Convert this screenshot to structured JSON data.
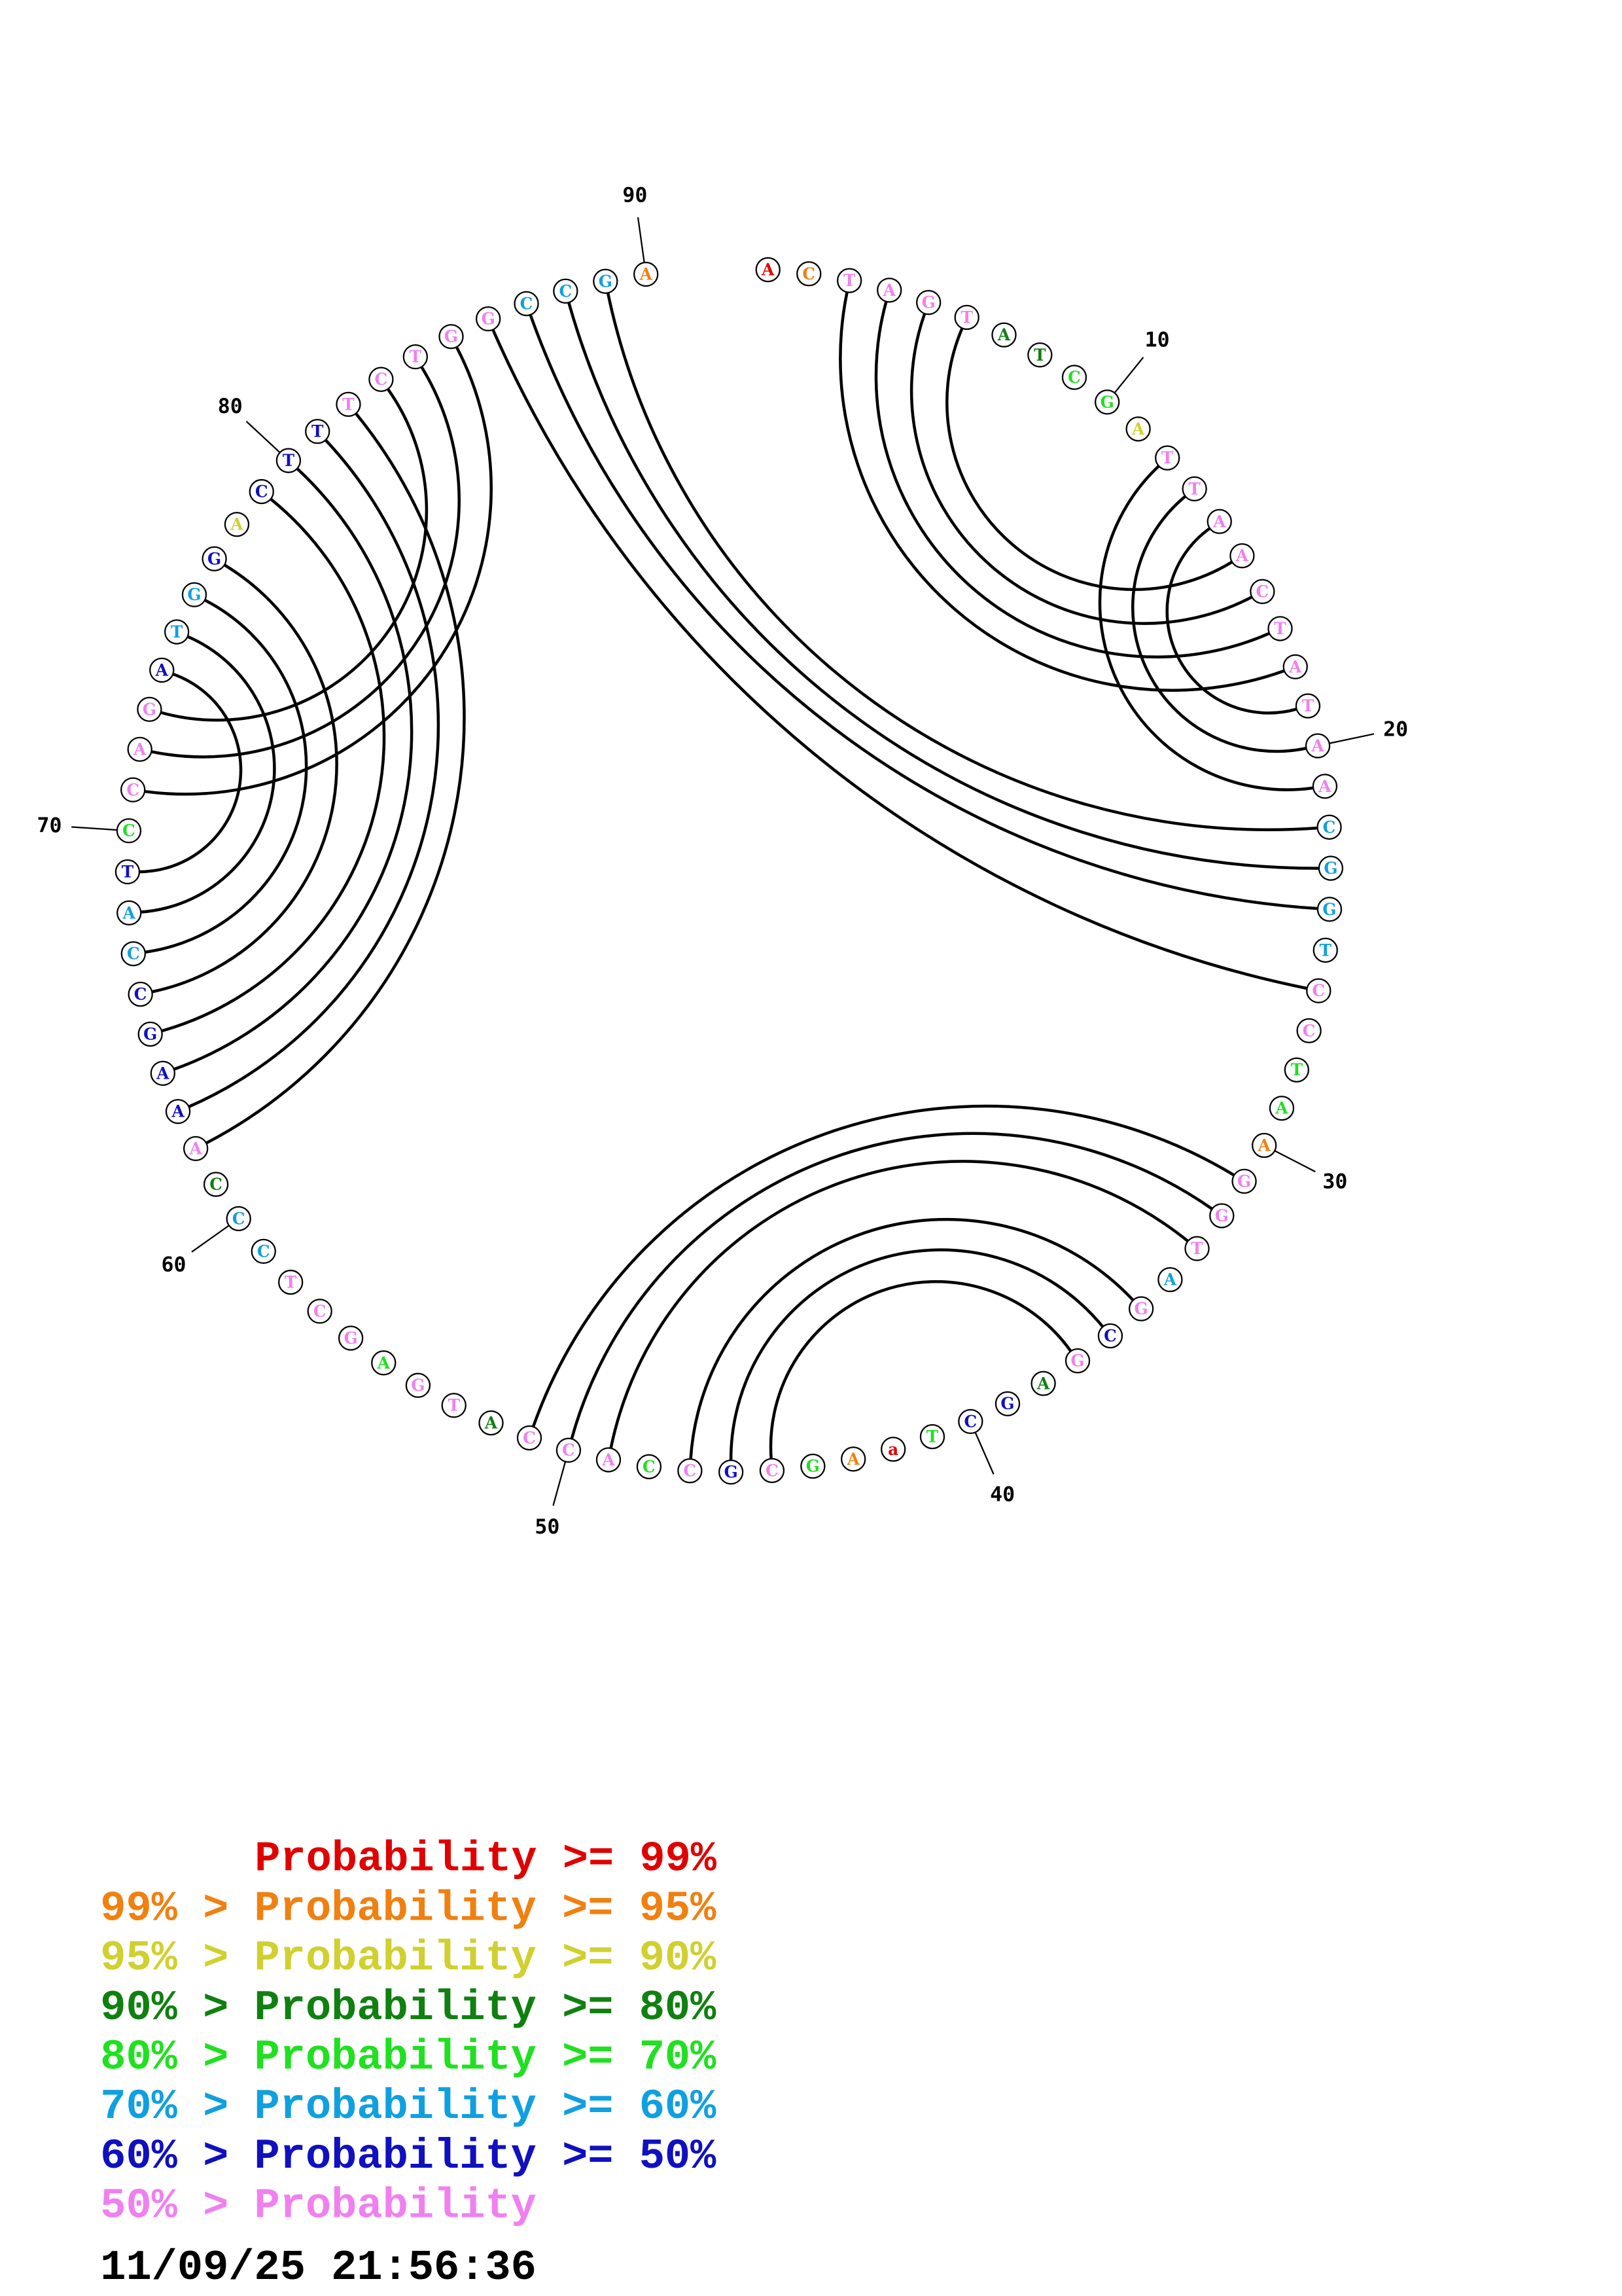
{
  "plot": {
    "nucleotides": [
      {
        "base": "A",
        "class": 0
      },
      {
        "base": "C",
        "class": 1
      },
      {
        "base": "T",
        "class": 7
      },
      {
        "base": "A",
        "class": 7
      },
      {
        "base": "G",
        "class": 7
      },
      {
        "base": "T",
        "class": 7
      },
      {
        "base": "A",
        "class": 3
      },
      {
        "base": "T",
        "class": 3
      },
      {
        "base": "C",
        "class": 4
      },
      {
        "base": "G",
        "class": 4
      },
      {
        "base": "A",
        "class": 2
      },
      {
        "base": "T",
        "class": 7
      },
      {
        "base": "T",
        "class": 7
      },
      {
        "base": "A",
        "class": 7
      },
      {
        "base": "A",
        "class": 7
      },
      {
        "base": "C",
        "class": 7
      },
      {
        "base": "T",
        "class": 7
      },
      {
        "base": "A",
        "class": 7
      },
      {
        "base": "T",
        "class": 7
      },
      {
        "base": "A",
        "class": 7
      },
      {
        "base": "A",
        "class": 7
      },
      {
        "base": "C",
        "class": 5
      },
      {
        "base": "G",
        "class": 5
      },
      {
        "base": "G",
        "class": 5
      },
      {
        "base": "T",
        "class": 5
      },
      {
        "base": "C",
        "class": 7
      },
      {
        "base": "C",
        "class": 7
      },
      {
        "base": "T",
        "class": 4
      },
      {
        "base": "A",
        "class": 4
      },
      {
        "base": "A",
        "class": 1
      },
      {
        "base": "G",
        "class": 7
      },
      {
        "base": "G",
        "class": 7
      },
      {
        "base": "T",
        "class": 7
      },
      {
        "base": "A",
        "class": 5
      },
      {
        "base": "G",
        "class": 7
      },
      {
        "base": "C",
        "class": 6
      },
      {
        "base": "G",
        "class": 7
      },
      {
        "base": "A",
        "class": 3
      },
      {
        "base": "G",
        "class": 6
      },
      {
        "base": "C",
        "class": 6
      },
      {
        "base": "T",
        "class": 4
      },
      {
        "base": "a",
        "class": 0
      },
      {
        "base": "A",
        "class": 1
      },
      {
        "base": "G",
        "class": 4
      },
      {
        "base": "C",
        "class": 7
      },
      {
        "base": "G",
        "class": 6
      },
      {
        "base": "C",
        "class": 7
      },
      {
        "base": "C",
        "class": 4
      },
      {
        "base": "A",
        "class": 7
      },
      {
        "base": "C",
        "class": 7
      },
      {
        "base": "C",
        "class": 7
      },
      {
        "base": "A",
        "class": 3
      },
      {
        "base": "T",
        "class": 7
      },
      {
        "base": "G",
        "class": 7
      },
      {
        "base": "A",
        "class": 4
      },
      {
        "base": "G",
        "class": 7
      },
      {
        "base": "C",
        "class": 7
      },
      {
        "base": "T",
        "class": 7
      },
      {
        "base": "C",
        "class": 5
      },
      {
        "base": "C",
        "class": 5
      },
      {
        "base": "C",
        "class": 3
      },
      {
        "base": "A",
        "class": 7
      },
      {
        "base": "A",
        "class": 6
      },
      {
        "base": "A",
        "class": 6
      },
      {
        "base": "G",
        "class": 6
      },
      {
        "base": "C",
        "class": 6
      },
      {
        "base": "C",
        "class": 5
      },
      {
        "base": "A",
        "class": 5
      },
      {
        "base": "T",
        "class": 6
      },
      {
        "base": "C",
        "class": 4
      },
      {
        "base": "C",
        "class": 7
      },
      {
        "base": "A",
        "class": 7
      },
      {
        "base": "G",
        "class": 7
      },
      {
        "base": "A",
        "class": 6
      },
      {
        "base": "T",
        "class": 5
      },
      {
        "base": "G",
        "class": 5
      },
      {
        "base": "G",
        "class": 6
      },
      {
        "base": "A",
        "class": 2
      },
      {
        "base": "C",
        "class": 6
      },
      {
        "base": "T",
        "class": 6
      },
      {
        "base": "T",
        "class": 6
      },
      {
        "base": "T",
        "class": 7
      },
      {
        "base": "C",
        "class": 7
      },
      {
        "base": "T",
        "class": 7
      },
      {
        "base": "G",
        "class": 7
      },
      {
        "base": "G",
        "class": 7
      },
      {
        "base": "C",
        "class": 5
      },
      {
        "base": "C",
        "class": 5
      },
      {
        "base": "G",
        "class": 5
      },
      {
        "base": "A",
        "class": 1
      }
    ],
    "pairs": [
      [
        3,
        18
      ],
      [
        4,
        17
      ],
      [
        5,
        16
      ],
      [
        6,
        15
      ],
      [
        12,
        21
      ],
      [
        13,
        20
      ],
      [
        14,
        19
      ],
      [
        86,
        26
      ],
      [
        87,
        24
      ],
      [
        88,
        23
      ],
      [
        89,
        22
      ],
      [
        31,
        51
      ],
      [
        32,
        50
      ],
      [
        33,
        49
      ],
      [
        35,
        47
      ],
      [
        36,
        46
      ],
      [
        37,
        45
      ],
      [
        74,
        69
      ],
      [
        75,
        68
      ],
      [
        76,
        67
      ],
      [
        77,
        66
      ],
      [
        79,
        65
      ],
      [
        80,
        64
      ],
      [
        81,
        63
      ],
      [
        82,
        62
      ],
      [
        83,
        73
      ],
      [
        84,
        72
      ],
      [
        85,
        71
      ]
    ],
    "position_labels": [
      10,
      20,
      30,
      40,
      50,
      60,
      70,
      80,
      90
    ]
  },
  "legend": [
    {
      "label": "Probability >= 99%",
      "color": "#e00000"
    },
    {
      "label": "99% > Probability >= 95%",
      "color": "#f08010"
    },
    {
      "label": "95% > Probability >= 90%",
      "color": "#d0d030"
    },
    {
      "label": "90% > Probability >= 80%",
      "color": "#108010"
    },
    {
      "label": "80% > Probability >= 70%",
      "color": "#20e020"
    },
    {
      "label": "70% > Probability >= 60%",
      "color": "#10a0e0"
    },
    {
      "label": "60% > Probability >= 50%",
      "color": "#1010c0"
    },
    {
      "label": "50% > Probability",
      "color": "#f080f0"
    }
  ],
  "timestamp": "11/09/25 21:56:36"
}
